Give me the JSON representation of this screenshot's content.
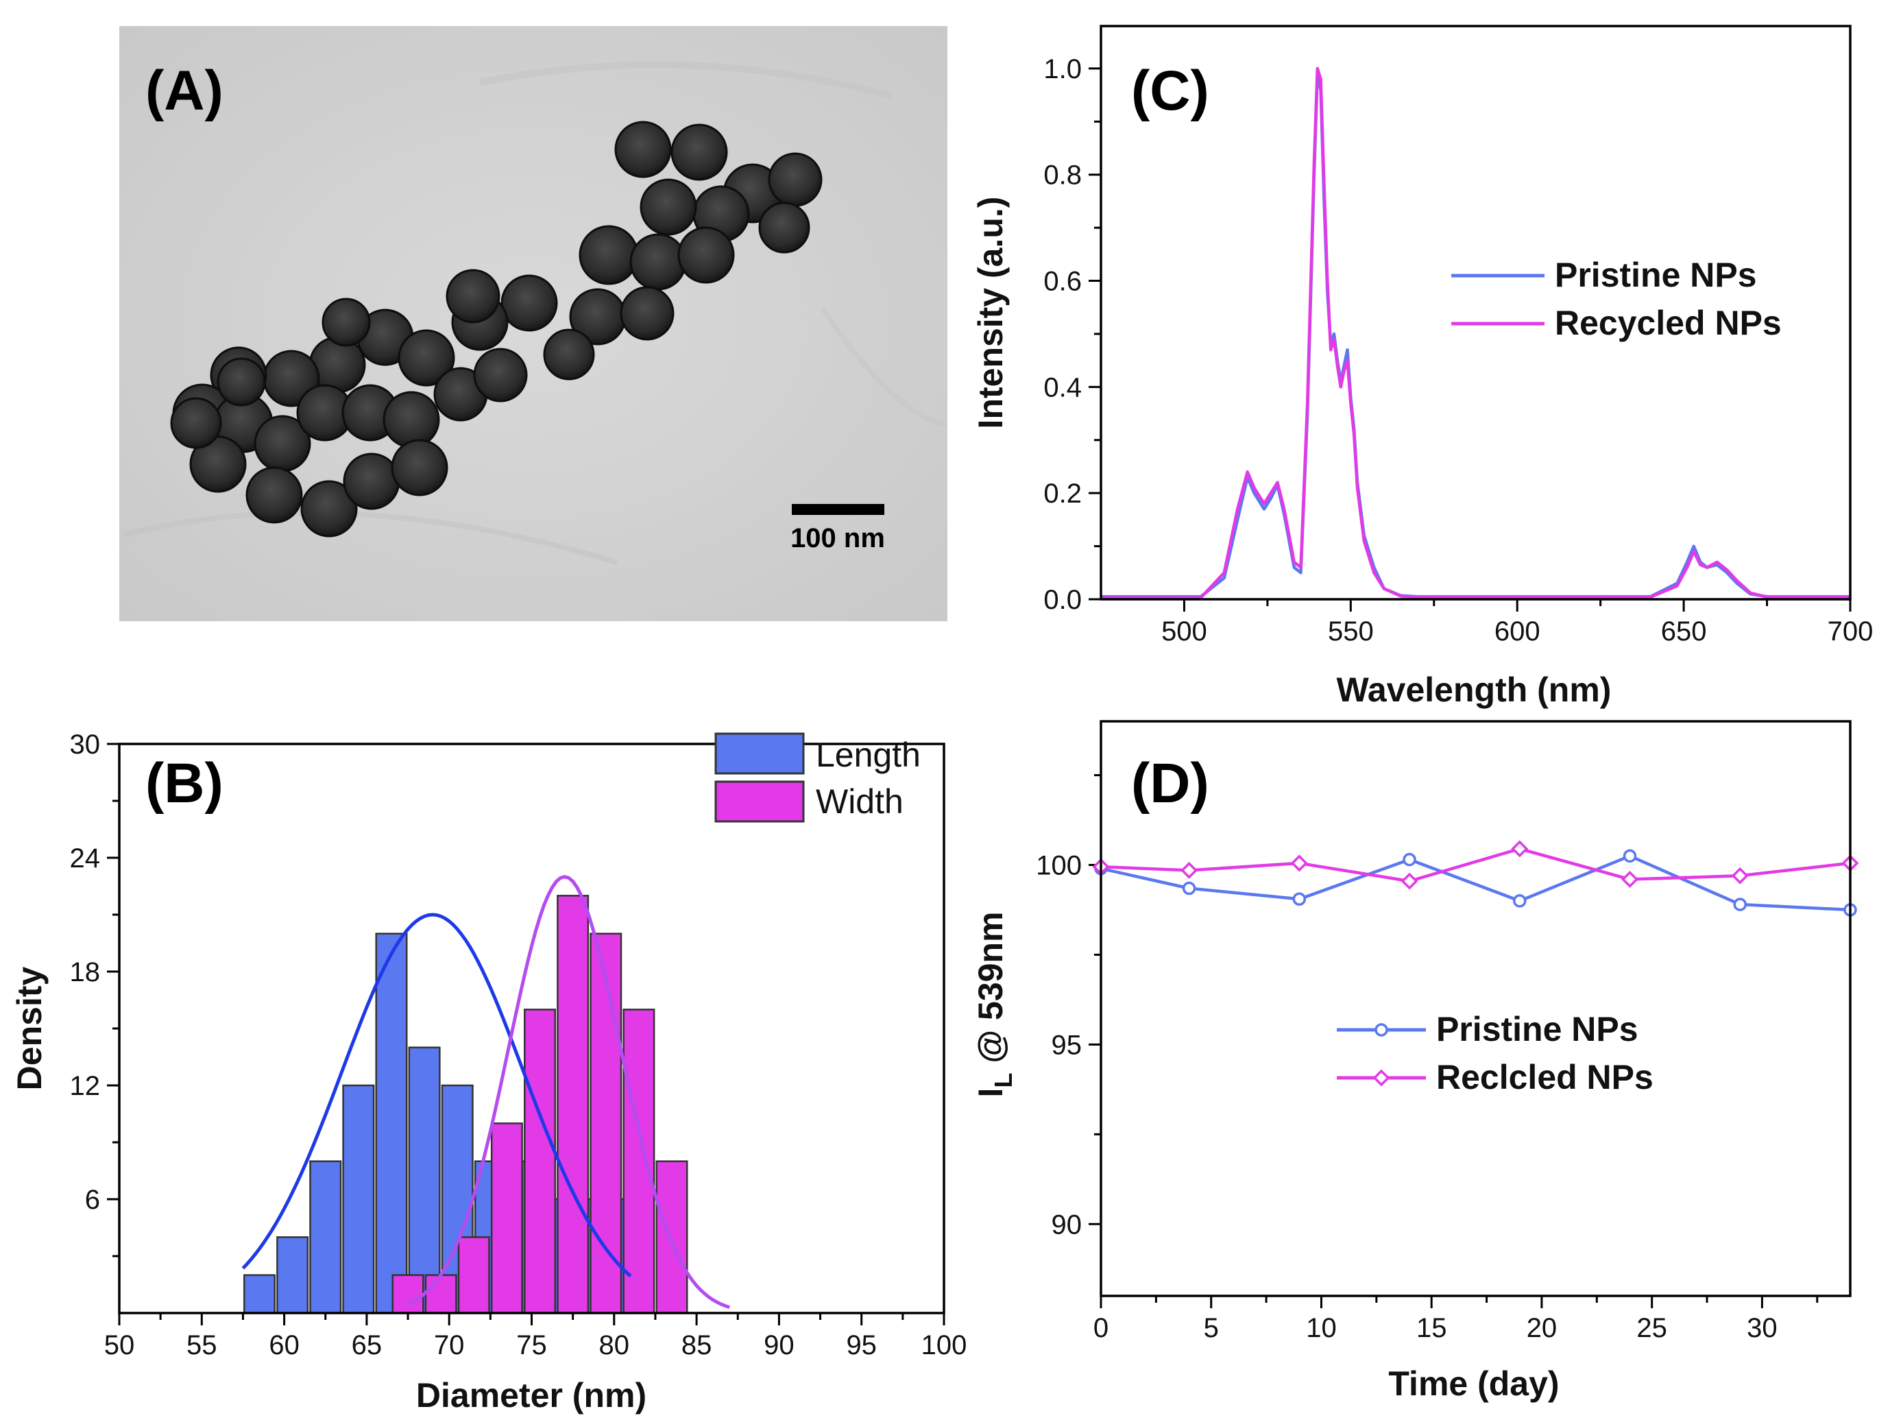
{
  "colors": {
    "blue": "#5a78f0",
    "magenta": "#e23ae6",
    "fitBlue": "#1e3ae8",
    "fitMagenta": "#b44df0"
  },
  "panelA": {
    "label": "(A)",
    "scale_bar_label": "100 nm"
  },
  "chart_data": [
    {
      "id": "B",
      "type": "bar",
      "panel_label": "(B)",
      "xlabel": "Diameter (nm)",
      "ylabel": "Density",
      "xlim": [
        50,
        100
      ],
      "ylim": [
        0,
        30
      ],
      "xticks": [
        50,
        55,
        60,
        65,
        70,
        75,
        80,
        85,
        90,
        95,
        100
      ],
      "yticks": [
        6,
        12,
        18,
        24,
        30
      ],
      "legend": {
        "position": "top-right"
      },
      "series": [
        {
          "name": "Length",
          "color": "#5a78f0",
          "bins": [
            58.5,
            60.5,
            62.5,
            64.5,
            66.5,
            68.5,
            70.5,
            72.5,
            74.5,
            76.5,
            78.5,
            80.5
          ],
          "values": [
            2,
            4,
            8,
            12,
            20,
            14,
            12,
            8,
            8,
            6,
            6,
            6
          ],
          "fit": {
            "mean": 69,
            "peak": 21,
            "sigma": 5.5,
            "range": [
              57.5,
              81
            ]
          }
        },
        {
          "name": "Width",
          "color": "#e23ae6",
          "bins": [
            67.5,
            69.5,
            71.5,
            73.5,
            75.5,
            77.5,
            79.5,
            81.5,
            83.5
          ],
          "values": [
            2,
            2,
            4,
            10,
            16,
            22,
            20,
            16,
            8
          ],
          "fit": {
            "mean": 77,
            "peak": 23,
            "sigma": 3.4,
            "range": [
              67.5,
              87
            ]
          }
        }
      ]
    },
    {
      "id": "C",
      "type": "line",
      "panel_label": "(C)",
      "xlabel": "Wavelength (nm)",
      "ylabel": "Intensity (a.u.)",
      "xlim": [
        475,
        700
      ],
      "ylim": [
        0,
        1.08
      ],
      "xticks": [
        500,
        550,
        600,
        650,
        700
      ],
      "yticks": [
        0.0,
        0.2,
        0.4,
        0.6,
        0.8,
        1.0
      ],
      "ytick_labels": [
        "0.0",
        "0.2",
        "0.4",
        "0.6",
        "0.8",
        "1.0"
      ],
      "legend": {
        "position": "center-right"
      },
      "series": [
        {
          "name": "Pristine NPs",
          "color": "#5a78f0",
          "x": [
            475,
            505,
            512,
            516,
            519,
            521,
            524,
            526,
            528,
            530,
            533,
            535,
            537,
            539,
            540,
            541,
            542,
            543,
            544,
            545,
            546,
            547,
            548,
            549,
            550,
            551,
            552,
            554,
            557,
            560,
            565,
            570,
            600,
            640,
            648,
            651,
            653,
            655,
            657,
            660,
            663,
            666,
            670,
            675,
            700
          ],
          "y": [
            0.005,
            0.005,
            0.04,
            0.15,
            0.23,
            0.2,
            0.17,
            0.19,
            0.215,
            0.16,
            0.06,
            0.05,
            0.35,
            0.8,
            0.99,
            0.96,
            0.75,
            0.58,
            0.48,
            0.5,
            0.45,
            0.41,
            0.44,
            0.47,
            0.38,
            0.32,
            0.22,
            0.12,
            0.06,
            0.02,
            0.007,
            0.005,
            0.005,
            0.005,
            0.03,
            0.07,
            0.1,
            0.07,
            0.06,
            0.065,
            0.05,
            0.03,
            0.01,
            0.005,
            0.005
          ]
        },
        {
          "name": "Recycled NPs",
          "color": "#e23ae6",
          "x": [
            475,
            505,
            512,
            516,
            519,
            521,
            524,
            526,
            528,
            530,
            533,
            535,
            537,
            539,
            540,
            541,
            542,
            543,
            544,
            545,
            546,
            547,
            548,
            549,
            550,
            551,
            552,
            554,
            557,
            560,
            565,
            570,
            600,
            640,
            648,
            651,
            653,
            655,
            657,
            660,
            663,
            666,
            670,
            675,
            700
          ],
          "y": [
            0.003,
            0.003,
            0.05,
            0.17,
            0.24,
            0.21,
            0.18,
            0.2,
            0.22,
            0.17,
            0.07,
            0.06,
            0.37,
            0.82,
            1.0,
            0.98,
            0.78,
            0.6,
            0.47,
            0.49,
            0.44,
            0.4,
            0.43,
            0.45,
            0.37,
            0.31,
            0.21,
            0.11,
            0.05,
            0.02,
            0.006,
            0.004,
            0.004,
            0.004,
            0.025,
            0.06,
            0.09,
            0.065,
            0.06,
            0.07,
            0.055,
            0.035,
            0.012,
            0.004,
            0.004
          ]
        }
      ]
    },
    {
      "id": "D",
      "type": "line",
      "panel_label": "(D)",
      "xlabel": "Time (day)",
      "ylabel_main": "I",
      "ylabel_sub": "L",
      "ylabel_rest": " @ 539nm",
      "xlim": [
        0,
        34
      ],
      "ylim": [
        88,
        104
      ],
      "xticks": [
        0,
        5,
        10,
        15,
        20,
        25,
        30
      ],
      "yticks": [
        90,
        95,
        100
      ],
      "legend": {
        "position": "center"
      },
      "series": [
        {
          "name": "Pristine NPs",
          "color": "#5a78f0",
          "marker": "circle",
          "x": [
            0,
            4,
            9,
            14,
            19,
            24,
            29,
            34
          ],
          "y": [
            99.9,
            99.35,
            99.05,
            100.15,
            99.0,
            100.25,
            98.9,
            98.75
          ]
        },
        {
          "name": "Reclcled NPs",
          "color": "#e23ae6",
          "marker": "diamond",
          "x": [
            0,
            4,
            9,
            14,
            19,
            24,
            29,
            34
          ],
          "y": [
            99.95,
            99.85,
            100.05,
            99.55,
            100.45,
            99.6,
            99.7,
            100.05
          ]
        }
      ]
    }
  ]
}
